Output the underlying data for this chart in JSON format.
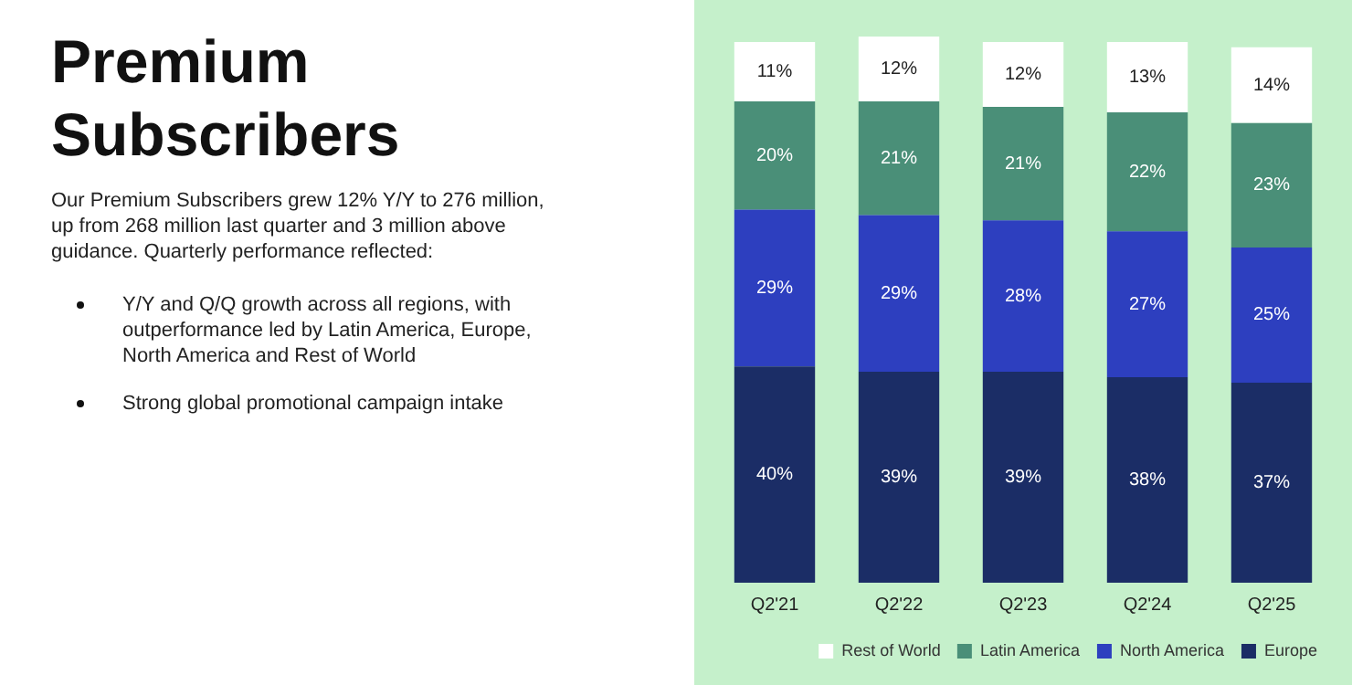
{
  "chart_data": {
    "type": "bar",
    "title": "Premium Subscribers",
    "subtitle": "Our Premium Subscribers grew 12% Y/Y to 276 million, up from 268 million last quarter and 3 million above guidance. Quarterly performance reflected:",
    "annotations": [
      "Y/Y and Q/Q growth across all regions, with outperformance led by Latin America, Europe, North America and Rest of World",
      "Strong global promotional campaign intake"
    ],
    "categories": [
      "Q2'21",
      "Q2'22",
      "Q2'23",
      "Q2'24",
      "Q2'25"
    ],
    "stacked": true,
    "ylim": [
      0,
      101
    ],
    "grid": false,
    "legend": "bottom right",
    "series": [
      {
        "name": "Europe",
        "color": "#1b2d66",
        "values": [
          40,
          39,
          39,
          38,
          37
        ],
        "value_labels": [
          "40%",
          "39%",
          "39%",
          "38%",
          "37%"
        ]
      },
      {
        "name": "North America",
        "color": "#2d3fbf",
        "values": [
          29,
          29,
          28,
          27,
          25
        ],
        "value_labels": [
          "29%",
          "29%",
          "28%",
          "27%",
          "25%"
        ]
      },
      {
        "name": "Latin America",
        "color": "#4a8f78",
        "values": [
          20,
          21,
          21,
          22,
          23
        ],
        "value_labels": [
          "20%",
          "21%",
          "21%",
          "22%",
          "23%"
        ]
      },
      {
        "name": "Rest of World",
        "color": "#ffffff",
        "values": [
          11,
          12,
          12,
          13,
          14
        ],
        "value_labels": [
          "11%",
          "12%",
          "12%",
          "13%",
          "14%"
        ]
      }
    ]
  }
}
